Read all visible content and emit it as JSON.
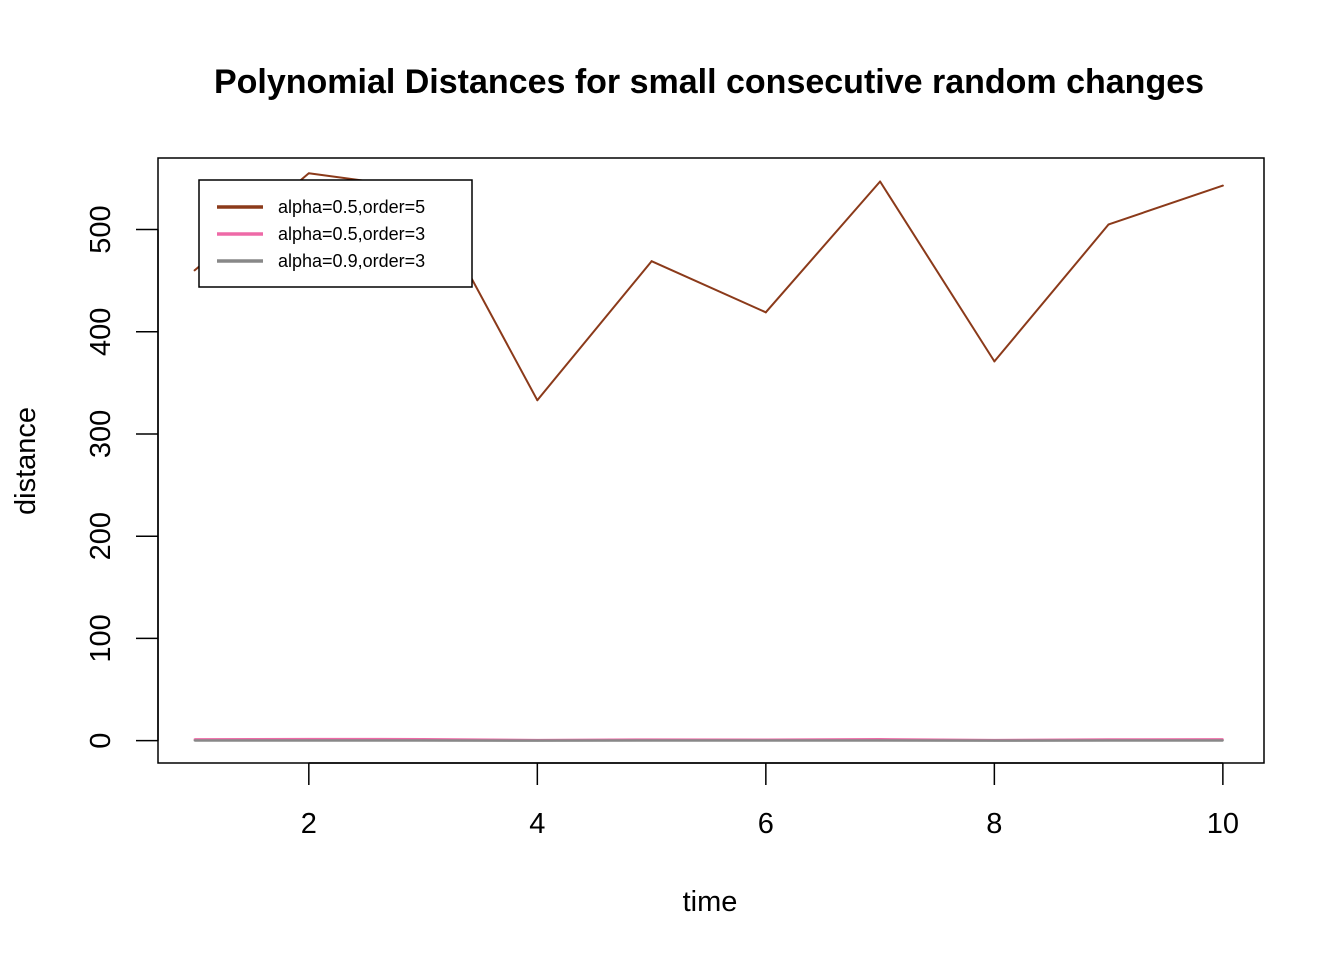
{
  "chart_data": {
    "type": "line",
    "title": "Polynomial Distances for  small consecutive random changes",
    "xlabel": "time",
    "ylabel": "distance",
    "x": [
      1,
      2,
      3,
      4,
      5,
      6,
      7,
      8,
      9,
      10
    ],
    "xlim": [
      0.68,
      10.36
    ],
    "ylim": [
      -21.9,
      570
    ],
    "xticks": [
      2,
      4,
      6,
      8,
      10
    ],
    "yticks": [
      0,
      100,
      200,
      300,
      400,
      500
    ],
    "grid": false,
    "legend_position": "top-left",
    "series": [
      {
        "name": "alpha=0.5,order=5",
        "color": "#8B3A1A",
        "values": [
          460,
          555,
          540,
          333,
          469,
          419,
          547,
          371,
          505,
          543
        ]
      },
      {
        "name": "alpha=0.5,order=3",
        "color": "#EE6AA7",
        "values": [
          1.2,
          1.5,
          1.4,
          0.5,
          1.0,
          0.8,
          1.3,
          0.5,
          1.1,
          1.2
        ]
      },
      {
        "name": "alpha=0.9,order=3",
        "color": "#888888",
        "values": [
          0.1,
          0.1,
          0.1,
          0.05,
          0.1,
          0.08,
          0.1,
          0.05,
          0.1,
          0.1
        ]
      }
    ]
  }
}
